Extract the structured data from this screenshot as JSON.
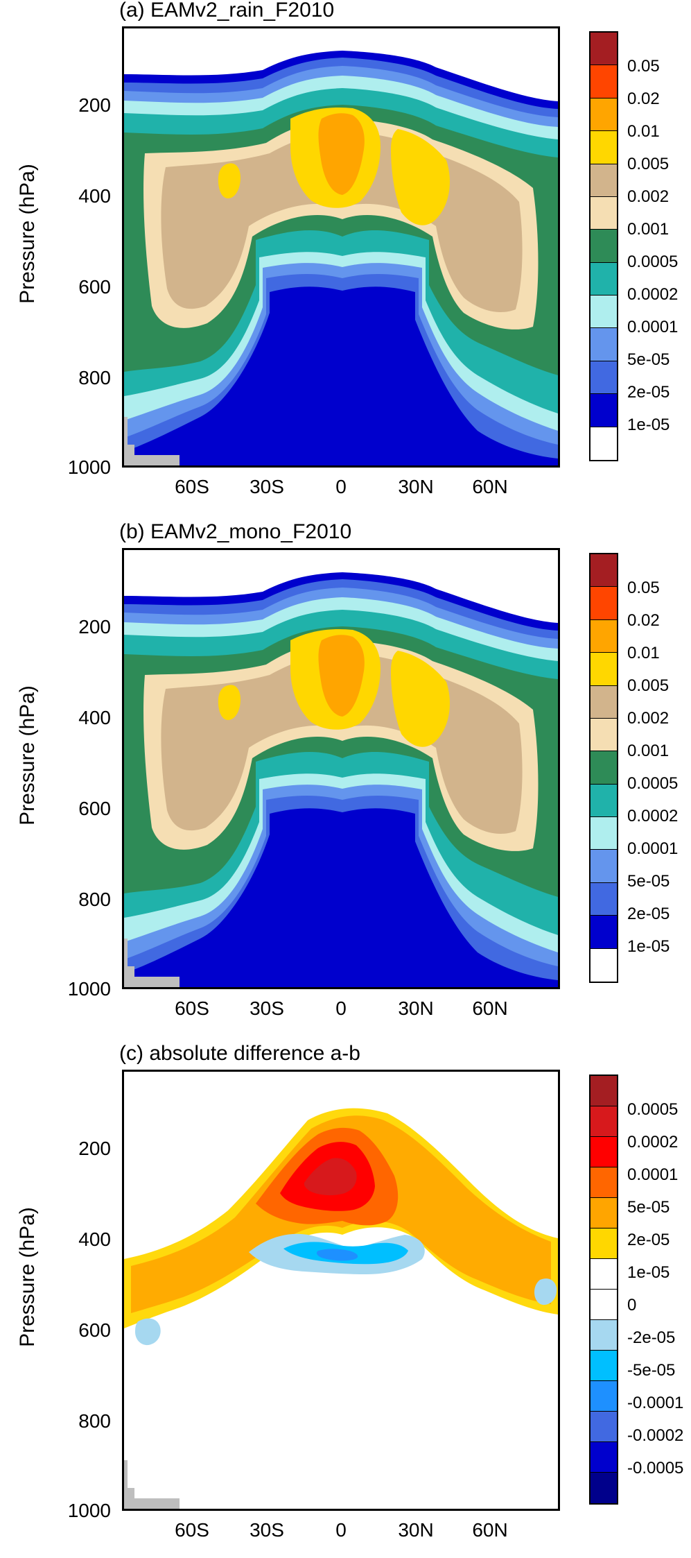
{
  "chart_data": [
    {
      "type": "heatmap",
      "title": "(a) EAMv2_rain_F2010",
      "ylabel": "Pressure (hPa)",
      "xlabel": "",
      "yticks": [
        "200",
        "400",
        "600",
        "800",
        "1000"
      ],
      "xticks": [
        "60S",
        "30S",
        "0",
        "30N",
        "60N"
      ],
      "ylim": [
        1000,
        50
      ],
      "colorbar_levels": [
        "0.05",
        "0.02",
        "0.01",
        "0.005",
        "0.002",
        "0.001",
        "0.0005",
        "0.0002",
        "0.0001",
        "5e-05",
        "2e-05",
        "1e-05"
      ],
      "colorbar_colors": [
        "#a41e22",
        "#ff4500",
        "#ffa500",
        "#ffd700",
        "#d2b48c",
        "#f5deb3",
        "#2e8b57",
        "#20b2aa",
        "#afeeee",
        "#6495ed",
        "#4169e1",
        "#0000cd",
        "#ffffff"
      ]
    },
    {
      "type": "heatmap",
      "title": "(b) EAMv2_mono_F2010",
      "ylabel": "Pressure (hPa)",
      "xlabel": "",
      "yticks": [
        "200",
        "400",
        "600",
        "800",
        "1000"
      ],
      "xticks": [
        "60S",
        "30S",
        "0",
        "30N",
        "60N"
      ],
      "ylim": [
        1000,
        50
      ],
      "colorbar_levels": [
        "0.05",
        "0.02",
        "0.01",
        "0.005",
        "0.002",
        "0.001",
        "0.0005",
        "0.0002",
        "0.0001",
        "5e-05",
        "2e-05",
        "1e-05"
      ],
      "colorbar_colors": [
        "#a41e22",
        "#ff4500",
        "#ffa500",
        "#ffd700",
        "#d2b48c",
        "#f5deb3",
        "#2e8b57",
        "#20b2aa",
        "#afeeee",
        "#6495ed",
        "#4169e1",
        "#0000cd",
        "#ffffff"
      ]
    },
    {
      "type": "heatmap",
      "title": "(c) absolute difference a-b",
      "ylabel": "Pressure (hPa)",
      "xlabel": "",
      "yticks": [
        "200",
        "400",
        "600",
        "800",
        "1000"
      ],
      "xticks": [
        "60S",
        "30S",
        "0",
        "30N",
        "60N"
      ],
      "ylim": [
        1000,
        50
      ],
      "colorbar_levels": [
        "0.0005",
        "0.0002",
        "0.0001",
        "5e-05",
        "2e-05",
        "1e-05",
        "0",
        "-2e-05",
        "-5e-05",
        "-0.0001",
        "-0.0002",
        "-0.0005"
      ],
      "colorbar_colors": [
        "#a41e22",
        "#d7191c",
        "#ff0000",
        "#ff6600",
        "#ffa500",
        "#ffd700",
        "#ffffff",
        "#ffffff",
        "#a6d8f0",
        "#00bfff",
        "#1e90ff",
        "#4169e1",
        "#0000cd",
        "#00008b"
      ]
    }
  ],
  "colors": {
    "terrain": "#bebebe",
    "frame": "#000000"
  }
}
